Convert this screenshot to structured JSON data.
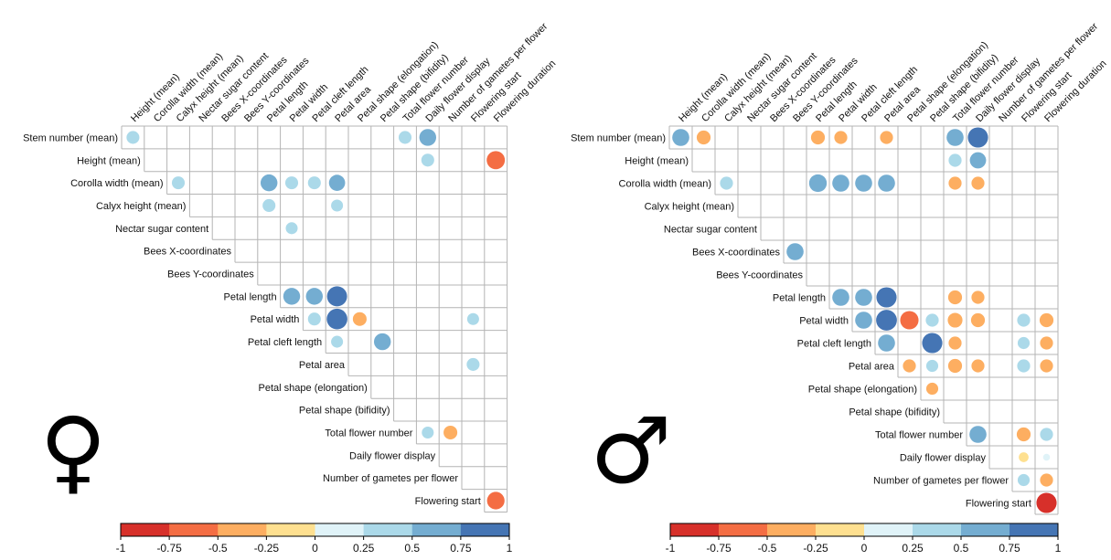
{
  "chart_data": [
    {
      "type": "heatmap",
      "panel": "female",
      "sex_symbol": "♀",
      "column_labels": [
        "Height (mean)",
        "Corolla width (mean)",
        "Calyx height (mean)",
        "Nectar sugar content",
        "Bees X-coordinates",
        "Bees Y-coordinates",
        "Petal length",
        "Petal width",
        "Petal cleft length",
        "Petal area",
        "Petal shape (elongation)",
        "Petal shape (bifidity)",
        "Total flower number",
        "Daily flower display",
        "Number of gametes per flower",
        "Flowering start",
        "Flowering duration"
      ],
      "row_labels": [
        "Stem number (mean)",
        "Height (mean)",
        "Corolla width (mean)",
        "Calyx height (mean)",
        "Nectar sugar content",
        "Bees X-coordinates",
        "Bees Y-coordinates",
        "Petal length",
        "Petal width",
        "Petal cleft length",
        "Petal area",
        "Petal shape (elongation)",
        "Petal shape (bifidity)",
        "Total flower number",
        "Daily flower display",
        "Number of gametes per flower",
        "Flowering start"
      ],
      "cells": [
        {
          "row": 0,
          "col": 0,
          "value": 0.35
        },
        {
          "row": 0,
          "col": 12,
          "value": 0.35
        },
        {
          "row": 0,
          "col": 13,
          "value": 0.6
        },
        {
          "row": 1,
          "col": 13,
          "value": 0.35
        },
        {
          "row": 1,
          "col": 16,
          "value": -0.7
        },
        {
          "row": 2,
          "col": 2,
          "value": 0.35
        },
        {
          "row": 2,
          "col": 6,
          "value": 0.6
        },
        {
          "row": 2,
          "col": 7,
          "value": 0.35
        },
        {
          "row": 2,
          "col": 8,
          "value": 0.35
        },
        {
          "row": 2,
          "col": 9,
          "value": 0.55
        },
        {
          "row": 3,
          "col": 6,
          "value": 0.35
        },
        {
          "row": 3,
          "col": 9,
          "value": 0.3
        },
        {
          "row": 4,
          "col": 7,
          "value": 0.3
        },
        {
          "row": 7,
          "col": 7,
          "value": 0.6
        },
        {
          "row": 7,
          "col": 8,
          "value": 0.6
        },
        {
          "row": 7,
          "col": 9,
          "value": 0.85
        },
        {
          "row": 8,
          "col": 8,
          "value": 0.35
        },
        {
          "row": 8,
          "col": 9,
          "value": 0.9
        },
        {
          "row": 8,
          "col": 10,
          "value": -0.4
        },
        {
          "row": 8,
          "col": 15,
          "value": 0.3
        },
        {
          "row": 9,
          "col": 9,
          "value": 0.3
        },
        {
          "row": 9,
          "col": 11,
          "value": 0.6
        },
        {
          "row": 10,
          "col": 15,
          "value": 0.35
        },
        {
          "row": 13,
          "col": 13,
          "value": 0.3
        },
        {
          "row": 13,
          "col": 14,
          "value": -0.4
        },
        {
          "row": 16,
          "col": 16,
          "value": -0.65
        }
      ],
      "colorbar": {
        "ticks": [
          "-1",
          "-0.75",
          "-0.5",
          "-0.25",
          "0",
          "0.25",
          "0.5",
          "0.75",
          "1"
        ],
        "range": [
          -1,
          1
        ]
      }
    },
    {
      "type": "heatmap",
      "panel": "male",
      "sex_symbol": "♂",
      "column_labels": [
        "Height (mean)",
        "Corolla width (mean)",
        "Calyx height (mean)",
        "Nectar sugar content",
        "Bees X-coordinates",
        "Bees Y-coordinates",
        "Petal length",
        "Petal width",
        "Petal cleft length",
        "Petal area",
        "Petal shape (elongation)",
        "Petal shape (bifidity)",
        "Total flower number",
        "Daily flower display",
        "Number of gametes per flower",
        "Flowering start",
        "Flowering duration"
      ],
      "row_labels": [
        "Stem number (mean)",
        "Height (mean)",
        "Corolla width (mean)",
        "Calyx height (mean)",
        "Nectar sugar content",
        "Bees X-coordinates",
        "Bees Y-coordinates",
        "Petal length",
        "Petal width",
        "Petal cleft length",
        "Petal area",
        "Petal shape (elongation)",
        "Petal shape (bifidity)",
        "Total flower number",
        "Daily flower display",
        "Number of gametes per flower",
        "Flowering start"
      ],
      "cells": [
        {
          "row": 0,
          "col": 0,
          "value": 0.6
        },
        {
          "row": 0,
          "col": 1,
          "value": -0.4
        },
        {
          "row": 0,
          "col": 6,
          "value": -0.4
        },
        {
          "row": 0,
          "col": 7,
          "value": -0.35
        },
        {
          "row": 0,
          "col": 9,
          "value": -0.35
        },
        {
          "row": 0,
          "col": 12,
          "value": 0.6
        },
        {
          "row": 0,
          "col": 13,
          "value": 0.85
        },
        {
          "row": 1,
          "col": 12,
          "value": 0.35
        },
        {
          "row": 1,
          "col": 13,
          "value": 0.55
        },
        {
          "row": 2,
          "col": 2,
          "value": 0.35
        },
        {
          "row": 2,
          "col": 6,
          "value": 0.65
        },
        {
          "row": 2,
          "col": 7,
          "value": 0.6
        },
        {
          "row": 2,
          "col": 8,
          "value": 0.6
        },
        {
          "row": 2,
          "col": 9,
          "value": 0.6
        },
        {
          "row": 2,
          "col": 12,
          "value": -0.35
        },
        {
          "row": 2,
          "col": 13,
          "value": -0.35
        },
        {
          "row": 5,
          "col": 5,
          "value": 0.6
        },
        {
          "row": 7,
          "col": 7,
          "value": 0.6
        },
        {
          "row": 7,
          "col": 8,
          "value": 0.6
        },
        {
          "row": 7,
          "col": 9,
          "value": 0.85
        },
        {
          "row": 7,
          "col": 12,
          "value": -0.4
        },
        {
          "row": 7,
          "col": 13,
          "value": -0.35
        },
        {
          "row": 8,
          "col": 8,
          "value": 0.6
        },
        {
          "row": 8,
          "col": 9,
          "value": 0.9
        },
        {
          "row": 8,
          "col": 10,
          "value": -0.7
        },
        {
          "row": 8,
          "col": 11,
          "value": 0.35
        },
        {
          "row": 8,
          "col": 12,
          "value": -0.45
        },
        {
          "row": 8,
          "col": 13,
          "value": -0.4
        },
        {
          "row": 8,
          "col": 15,
          "value": 0.35
        },
        {
          "row": 8,
          "col": 16,
          "value": -0.4
        },
        {
          "row": 9,
          "col": 9,
          "value": 0.6
        },
        {
          "row": 9,
          "col": 11,
          "value": 0.85
        },
        {
          "row": 9,
          "col": 12,
          "value": -0.35
        },
        {
          "row": 9,
          "col": 15,
          "value": 0.3
        },
        {
          "row": 9,
          "col": 16,
          "value": -0.35
        },
        {
          "row": 10,
          "col": 10,
          "value": -0.35
        },
        {
          "row": 10,
          "col": 11,
          "value": 0.3
        },
        {
          "row": 10,
          "col": 12,
          "value": -0.4
        },
        {
          "row": 10,
          "col": 13,
          "value": -0.35
        },
        {
          "row": 10,
          "col": 15,
          "value": 0.35
        },
        {
          "row": 10,
          "col": 16,
          "value": -0.35
        },
        {
          "row": 11,
          "col": 11,
          "value": -0.3
        },
        {
          "row": 13,
          "col": 13,
          "value": 0.6
        },
        {
          "row": 13,
          "col": 15,
          "value": -0.4
        },
        {
          "row": 13,
          "col": 16,
          "value": 0.35
        },
        {
          "row": 14,
          "col": 15,
          "value": -0.2
        },
        {
          "row": 14,
          "col": 16,
          "value": 0.1
        },
        {
          "row": 15,
          "col": 15,
          "value": 0.3
        },
        {
          "row": 15,
          "col": 16,
          "value": -0.35
        },
        {
          "row": 16,
          "col": 16,
          "value": -0.85
        }
      ],
      "colorbar": {
        "ticks": [
          "-1",
          "-0.75",
          "-0.5",
          "-0.25",
          "0",
          "0.25",
          "0.5",
          "0.75",
          "1"
        ],
        "range": [
          -1,
          1
        ]
      }
    }
  ],
  "color_scale": {
    "bins": [
      "#d7302a",
      "#f46d43",
      "#fdae61",
      "#fee090",
      "#e0f3f8",
      "#abd9e9",
      "#74add1",
      "#4575b4"
    ],
    "grid_line": "#b4b4b4"
  }
}
